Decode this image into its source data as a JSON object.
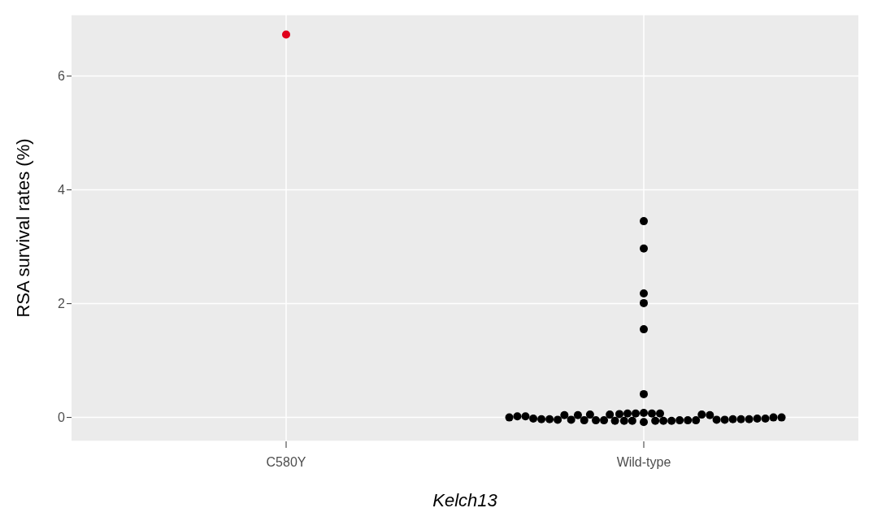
{
  "chart_data": {
    "type": "scatter",
    "xlabel": "Kelch13",
    "ylabel": "RSA survival rates (%)",
    "categories": [
      "C580Y",
      "Wild-type"
    ],
    "ylim": [
      -0.42,
      7.08
    ],
    "yticks": [
      0,
      2,
      4,
      6
    ],
    "grid": true,
    "marker": "circle",
    "series": [
      {
        "color": "#e0001b",
        "x": [
          "C580Y"
        ],
        "values": [
          6.73
        ]
      },
      {
        "color": "#000000",
        "x": [
          "Wild-type",
          "Wild-type",
          "Wild-type",
          "Wild-type",
          "Wild-type",
          "Wild-type",
          "Wild-type",
          "Wild-type",
          "Wild-type",
          "Wild-type",
          "Wild-type",
          "Wild-type",
          "Wild-type",
          "Wild-type",
          "Wild-type",
          "Wild-type",
          "Wild-type",
          "Wild-type",
          "Wild-type",
          "Wild-type",
          "Wild-type",
          "Wild-type",
          "Wild-type",
          "Wild-type",
          "Wild-type",
          "Wild-type",
          "Wild-type",
          "Wild-type",
          "Wild-type",
          "Wild-type",
          "Wild-type",
          "Wild-type",
          "Wild-type",
          "Wild-type",
          "Wild-type",
          "Wild-type",
          "Wild-type",
          "Wild-type",
          "Wild-type",
          "Wild-type",
          "Wild-type",
          "Wild-type",
          "Wild-type",
          "Wild-type",
          "Wild-type",
          "Wild-type",
          "Wild-type",
          "Wild-type"
        ],
        "values": [
          3.45,
          2.97,
          2.18,
          2.01,
          1.55,
          0.41,
          -0.05,
          0.0,
          0.04,
          0.05,
          -0.06,
          -0.06,
          -0.05,
          0.04,
          -0.02,
          -0.03,
          -0.03,
          -0.05,
          -0.04,
          -0.05,
          -0.05,
          -0.04,
          -0.03,
          -0.06,
          -0.02,
          0.0,
          0.05,
          0.02,
          -0.03,
          0.07,
          0.08,
          0.06,
          0.04,
          -0.05,
          -0.02,
          -0.04,
          0.07,
          -0.08,
          -0.06,
          0.0,
          -0.06,
          0.02,
          0.05,
          0.07,
          -0.06,
          0.07,
          -0.03,
          -0.04
        ]
      }
    ]
  }
}
